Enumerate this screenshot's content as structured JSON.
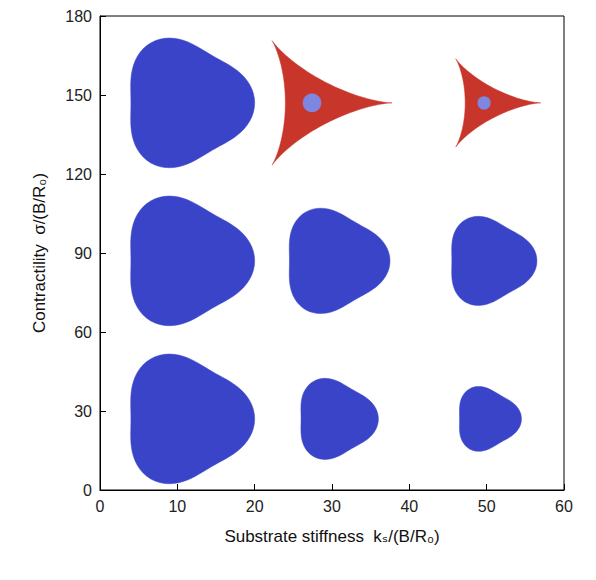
{
  "chart_data": {
    "type": "scatter",
    "xlabel": "Substrate stiffness  kₛ/(B/R₀)",
    "ylabel": "Contractility  σ/(B/R₀)",
    "xlim": [
      0,
      60
    ],
    "xticks": [
      0,
      10,
      20,
      30,
      40,
      50,
      60
    ],
    "ylim": [
      0,
      180
    ],
    "yticks": [
      0,
      30,
      60,
      90,
      120,
      150,
      180
    ],
    "grid": false,
    "series": [
      {
        "marker": "rounded",
        "color": "#3a44c8",
        "x": [
          12,
          31,
          50.5,
          12,
          31,
          51,
          12
        ],
        "values": [
          27,
          27,
          27,
          87,
          87,
          87,
          147
        ],
        "sizes": [
          16,
          10,
          8,
          16,
          13,
          11,
          16
        ]
      },
      {
        "marker": "star",
        "color": "#c8352a",
        "x": [
          30,
          51.5
        ],
        "values": [
          147,
          147
        ],
        "sizes": [
          15.5,
          11
        ]
      }
    ]
  }
}
